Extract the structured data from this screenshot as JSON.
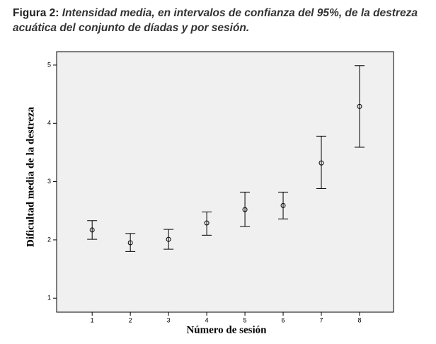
{
  "chart_data": {
    "type": "errorbar",
    "title_label": "Figura 2:",
    "title": "Intensidad media, en intervalos de confianza del 95%, de la destreza acuática del conjunto de díadas y por sesión.",
    "x_label": "Número de sesión",
    "y_label": "Dificultad media de la destreza",
    "x": [
      1,
      2,
      3,
      4,
      5,
      6,
      7,
      8
    ],
    "xlim": [
      0.07,
      8.89
    ],
    "xticks": [
      1,
      2,
      3,
      4,
      5,
      6,
      7,
      8
    ],
    "ylim": [
      0.76,
      5.23
    ],
    "yticks": [
      1,
      2,
      3,
      4,
      5
    ],
    "series": [
      {
        "color": "#000000",
        "values": [
          2.17,
          1.95,
          2.01,
          2.29,
          2.52,
          2.59,
          3.32,
          4.29
        ],
        "upper": [
          2.33,
          2.11,
          2.18,
          2.48,
          2.82,
          2.82,
          3.78,
          4.99
        ],
        "lower": [
          2.01,
          1.8,
          1.84,
          2.08,
          2.23,
          2.36,
          2.88,
          3.59
        ]
      }
    ],
    "background": "#f0f0f0"
  }
}
